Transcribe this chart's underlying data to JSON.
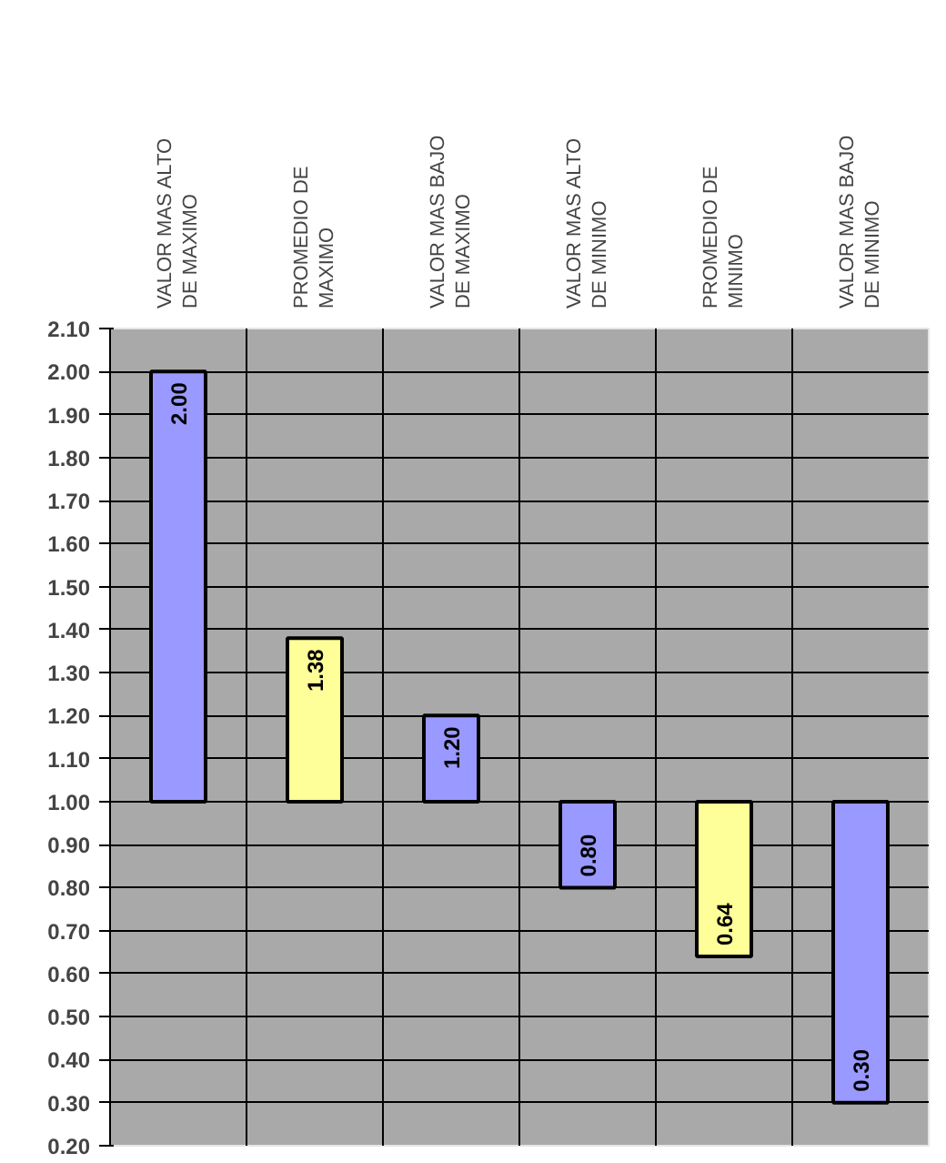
{
  "chart_data": {
    "type": "bar",
    "categories": [
      "VALOR MAS ALTO\nDE MAXIMO",
      "PROMEDIO DE\nMAXIMO",
      "VALOR MAS BAJO\nDE MAXIMO",
      "VALOR MAS ALTO\nDE MINIMO",
      "PROMEDIO DE\nMINIMO",
      "VALOR MAS BAJO\nDE MINIMO"
    ],
    "base": [
      1.0,
      1.0,
      1.0,
      1.0,
      1.0,
      1.0
    ],
    "values": [
      1.0,
      0.38,
      0.2,
      -0.2,
      -0.36,
      -0.7
    ],
    "colors": [
      "#9999ff",
      "#ffff99",
      "#9999ff",
      "#9999ff",
      "#ffff99",
      "#9999ff"
    ],
    "value_labels": [
      "2.00",
      "1.38",
      "1.20",
      "0.80",
      "0.64",
      "0.30"
    ],
    "ylim": [
      0.2,
      2.1
    ],
    "yticks": [
      {
        "value": 0.2,
        "label": "0.20"
      },
      {
        "value": 0.3,
        "label": "0.30"
      },
      {
        "value": 0.4,
        "label": "0.40"
      },
      {
        "value": 0.5,
        "label": "0.50"
      },
      {
        "value": 0.6,
        "label": "0.60"
      },
      {
        "value": 0.7,
        "label": "0.70"
      },
      {
        "value": 0.8,
        "label": "0.80"
      },
      {
        "value": 0.9,
        "label": "0.90"
      },
      {
        "value": 1.0,
        "label": "1.00"
      },
      {
        "value": 1.1,
        "label": "1.10"
      },
      {
        "value": 1.2,
        "label": "1.20"
      },
      {
        "value": 1.3,
        "label": "1.30"
      },
      {
        "value": 1.4,
        "label": "1.40"
      },
      {
        "value": 1.5,
        "label": "1.50"
      },
      {
        "value": 1.6,
        "label": "1.60"
      },
      {
        "value": 1.7,
        "label": "1.70"
      },
      {
        "value": 1.8,
        "label": "1.80"
      },
      {
        "value": 1.9,
        "label": "1.90"
      },
      {
        "value": 2.0,
        "label": "2.00"
      },
      {
        "value": 2.1,
        "label": "2.10"
      }
    ],
    "grid": true
  }
}
